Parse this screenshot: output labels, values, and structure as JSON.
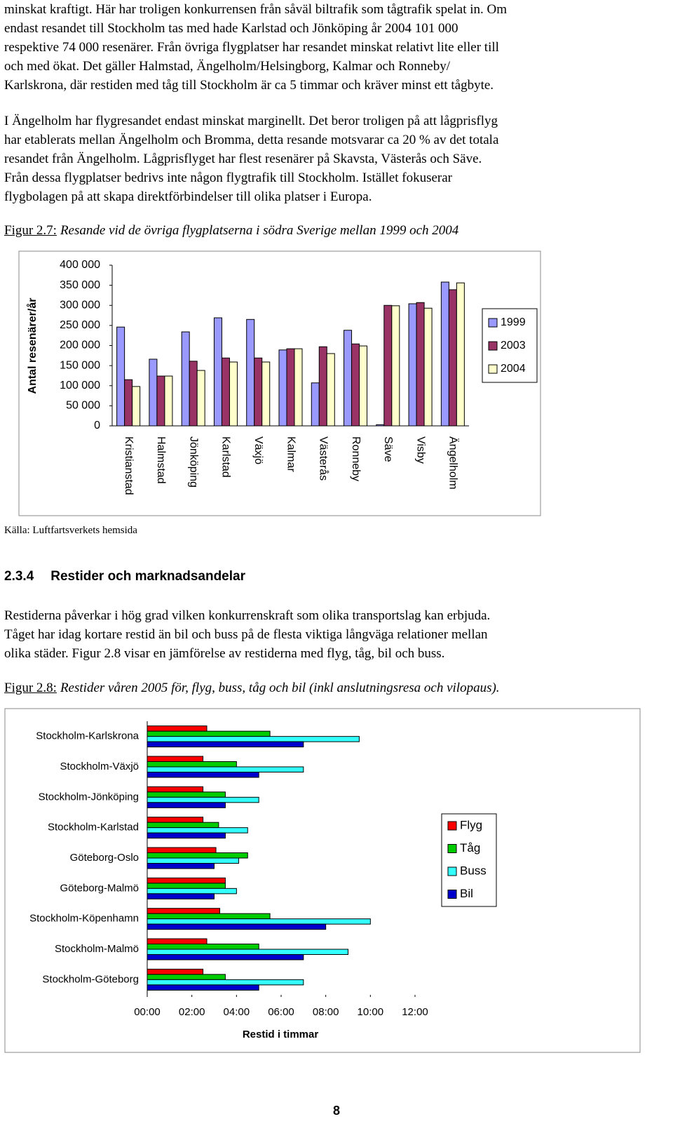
{
  "document": {
    "paragraph_1": [
      "minskat kraftigt. Här har troligen konkurrensen från såväl biltrafik som tågtrafik spelat in. Om",
      "endast resandet till Stockholm tas med hade Karlstad och Jönköping år 2004 101 000",
      "respektive 74 000 resenärer. Från övriga flygplatser har resandet minskat relativt lite eller till",
      "och med ökat. Det gäller Halmstad, Ängelholm/Helsingborg, Kalmar och Ronneby/",
      "Karlskrona, där restiden med tåg till Stockholm är ca 5 timmar och kräver minst ett tågbyte."
    ],
    "paragraph_2": [
      "I Ängelholm har flygresandet endast minskat marginellt. Det beror troligen på att lågprisflyg",
      "har etablerats mellan Ängelholm och Bromma, detta resande motsvarar ca 20 % av det totala",
      "resandet från Ängelholm. Lågprisflyget har flest resenärer på Skavsta, Västerås och Säve.",
      "Från dessa flygplatser bedrivs inte någon flygtrafik till Stockholm. Istället fokuserar",
      "flygbolagen på att skapa direktförbindelser till olika platser i Europa."
    ],
    "figure_1_caption": {
      "label": "Figur 2.7:",
      "text": "Resande vid de övriga flygplatserna i södra Sverige mellan 1999 och 2004"
    },
    "source": "Källa: Luftfartsverkets hemsida",
    "section": {
      "number": "2.3.4",
      "title": "Restider och marknadsandelar"
    },
    "paragraph_3": [
      "Restiderna påverkar i hög grad vilken konkurrenskraft som olika transportslag kan erbjuda.",
      "Tåget har idag kortare restid än bil och buss på de flesta viktiga långväga relationer mellan",
      "olika städer. Figur 2.8 visar en jämförelse av restiderna med flyg, tåg, bil och buss."
    ],
    "figure_2_caption": {
      "label": "Figur 2.8:",
      "text": "Restider våren 2005 för, flyg, buss, tåg och bil (inkl anslutningsresa och vilopaus)."
    },
    "page_number": "8"
  },
  "chart_data": [
    {
      "type": "bar",
      "y_label": "Antal resenärer/år",
      "categories": [
        "Kristianstad",
        "Halmstad",
        "Jönköping",
        "Karlstad",
        "Växjö",
        "Kalmar",
        "Västerås",
        "Ronneby",
        "Säve",
        "Visby",
        "Ängelholm"
      ],
      "series": [
        {
          "name": "1999",
          "color": "#9999ff",
          "values": [
            246000,
            166000,
            234000,
            269000,
            265000,
            189000,
            107000,
            238000,
            3000,
            304000,
            358000
          ]
        },
        {
          "name": "2003",
          "color": "#993366",
          "values": [
            115000,
            124000,
            161000,
            169000,
            169000,
            192000,
            197000,
            204000,
            300000,
            307000,
            339000
          ]
        },
        {
          "name": "2004",
          "color": "#ffffcc",
          "values": [
            98000,
            124000,
            138000,
            159000,
            159000,
            192000,
            180000,
            199000,
            299000,
            293000,
            356000
          ]
        }
      ],
      "ylim": [
        0,
        400000
      ],
      "yticks": [
        0,
        {
          "value": 50000,
          "label": "50 000"
        },
        {
          "value": 100000,
          "label": "100 000"
        },
        {
          "value": 150000,
          "label": "150 000"
        },
        {
          "value": 200000,
          "label": "200 000"
        },
        {
          "value": 250000,
          "label": "250 000"
        },
        {
          "value": 300000,
          "label": "300 000"
        },
        {
          "value": 350000,
          "label": "350 000"
        },
        {
          "value": 400000,
          "label": "400 000"
        }
      ],
      "legend": "right"
    },
    {
      "type": "barh",
      "x_label": "Restid i timmar",
      "categories": [
        "Stockholm-Karlskrona",
        "Stockholm-Växjö",
        "Stockholm-Jönköping",
        "Stockholm-Karlstad",
        "Göteborg-Oslo",
        "Göteborg-Malmö",
        "Stockholm-Köpenhamn",
        "Stockholm-Malmö",
        "Stockholm-Göteborg"
      ],
      "series": [
        {
          "name": "Flyg",
          "color": "#ff0000",
          "values": [
            2.67,
            2.5,
            2.5,
            2.5,
            3.08,
            3.5,
            3.25,
            2.67,
            2.5
          ]
        },
        {
          "name": "Tåg",
          "color": "#00cc00",
          "values": [
            5.5,
            4.0,
            3.5,
            3.2,
            4.5,
            3.5,
            5.5,
            5.0,
            3.5
          ]
        },
        {
          "name": "Buss",
          "color": "#33ffff",
          "values": [
            9.5,
            7.0,
            5.0,
            4.5,
            4.1,
            4.0,
            10.0,
            9.0,
            7.0
          ]
        },
        {
          "name": "Bil",
          "color": "#0000cc",
          "values": [
            7.0,
            5.0,
            3.5,
            3.5,
            3.0,
            3.0,
            8.0,
            7.0,
            5.0
          ]
        }
      ],
      "xlim": [
        0,
        12
      ],
      "xticks": [
        {
          "value": 0,
          "label": "00:00"
        },
        {
          "value": 2,
          "label": "02:00"
        },
        {
          "value": 4,
          "label": "04:00"
        },
        {
          "value": 6,
          "label": "06:00"
        },
        {
          "value": 8,
          "label": "08:00"
        },
        {
          "value": 10,
          "label": "10:00"
        },
        {
          "value": 12,
          "label": "12:00"
        }
      ],
      "legend": "right"
    }
  ]
}
